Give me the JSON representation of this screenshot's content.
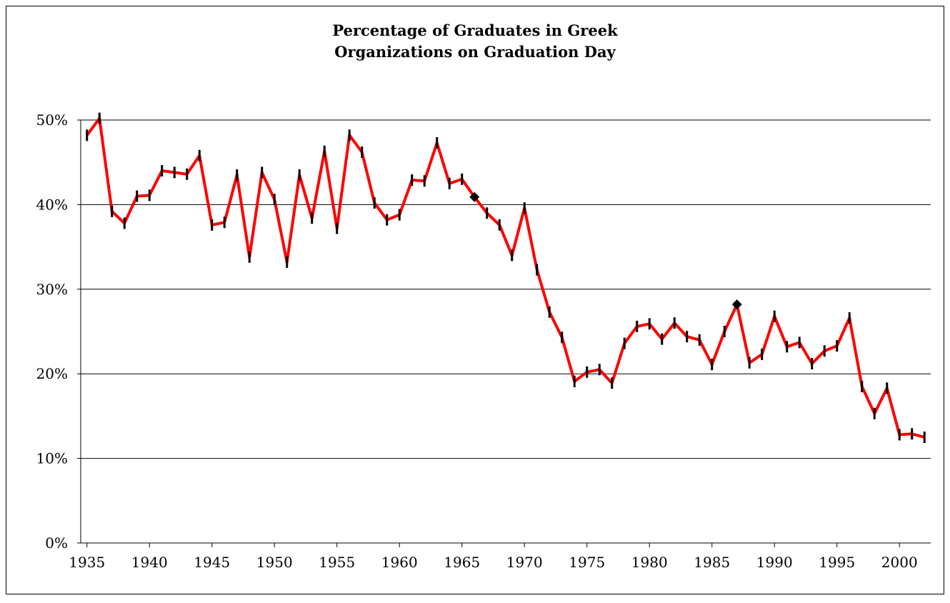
{
  "chart_data": {
    "type": "line",
    "title": [
      "Percentage of Graduates in Greek",
      "Organizations on Graduation Day"
    ],
    "x": [
      1935,
      1936,
      1937,
      1938,
      1939,
      1940,
      1941,
      1942,
      1943,
      1944,
      1945,
      1946,
      1947,
      1948,
      1949,
      1950,
      1951,
      1952,
      1953,
      1954,
      1955,
      1956,
      1957,
      1958,
      1959,
      1960,
      1961,
      1962,
      1963,
      1964,
      1965,
      1966,
      1967,
      1968,
      1969,
      1970,
      1971,
      1972,
      1973,
      1974,
      1975,
      1976,
      1977,
      1978,
      1979,
      1980,
      1981,
      1982,
      1983,
      1984,
      1985,
      1986,
      1987,
      1988,
      1989,
      1990,
      1991,
      1992,
      1993,
      1994,
      1995,
      1996,
      1997,
      1998,
      1999,
      2000,
      2001,
      2002
    ],
    "series": [
      {
        "color": "#ff0000",
        "marker": "dash",
        "diamond_x": [
          1966,
          1987
        ],
        "values": [
          48.2,
          50.2,
          39.2,
          37.8,
          41.0,
          41.1,
          44.0,
          43.8,
          43.6,
          45.8,
          37.6,
          37.9,
          43.5,
          33.8,
          43.8,
          40.6,
          33.2,
          43.5,
          38.4,
          46.3,
          37.2,
          48.2,
          46.2,
          40.2,
          38.2,
          38.8,
          42.9,
          42.8,
          47.3,
          42.5,
          43.0,
          40.9,
          39.0,
          37.6,
          34.0,
          39.6,
          32.3,
          27.3,
          24.3,
          19.1,
          20.2,
          20.5,
          18.9,
          23.6,
          25.6,
          25.9,
          24.1,
          26.0,
          24.4,
          24.0,
          21.1,
          25.0,
          28.2,
          21.3,
          22.3,
          26.8,
          23.2,
          23.7,
          21.2,
          22.7,
          23.3,
          26.6,
          18.5,
          15.3,
          18.3,
          12.8,
          12.9,
          12.5
        ]
      }
    ],
    "xlim": [
      1934.5,
      2002.5
    ],
    "xticks": [
      1935,
      1940,
      1945,
      1950,
      1955,
      1960,
      1965,
      1970,
      1975,
      1980,
      1985,
      1990,
      1995,
      2000
    ],
    "ylim": [
      0,
      50
    ],
    "yticks": [
      {
        "value": 0,
        "label": "0%"
      },
      {
        "value": 10,
        "label": "10%"
      },
      {
        "value": 20,
        "label": "20%"
      },
      {
        "value": 30,
        "label": "30%"
      },
      {
        "value": 40,
        "label": "40%"
      },
      {
        "value": 50,
        "label": "50%"
      }
    ],
    "grid": true
  }
}
